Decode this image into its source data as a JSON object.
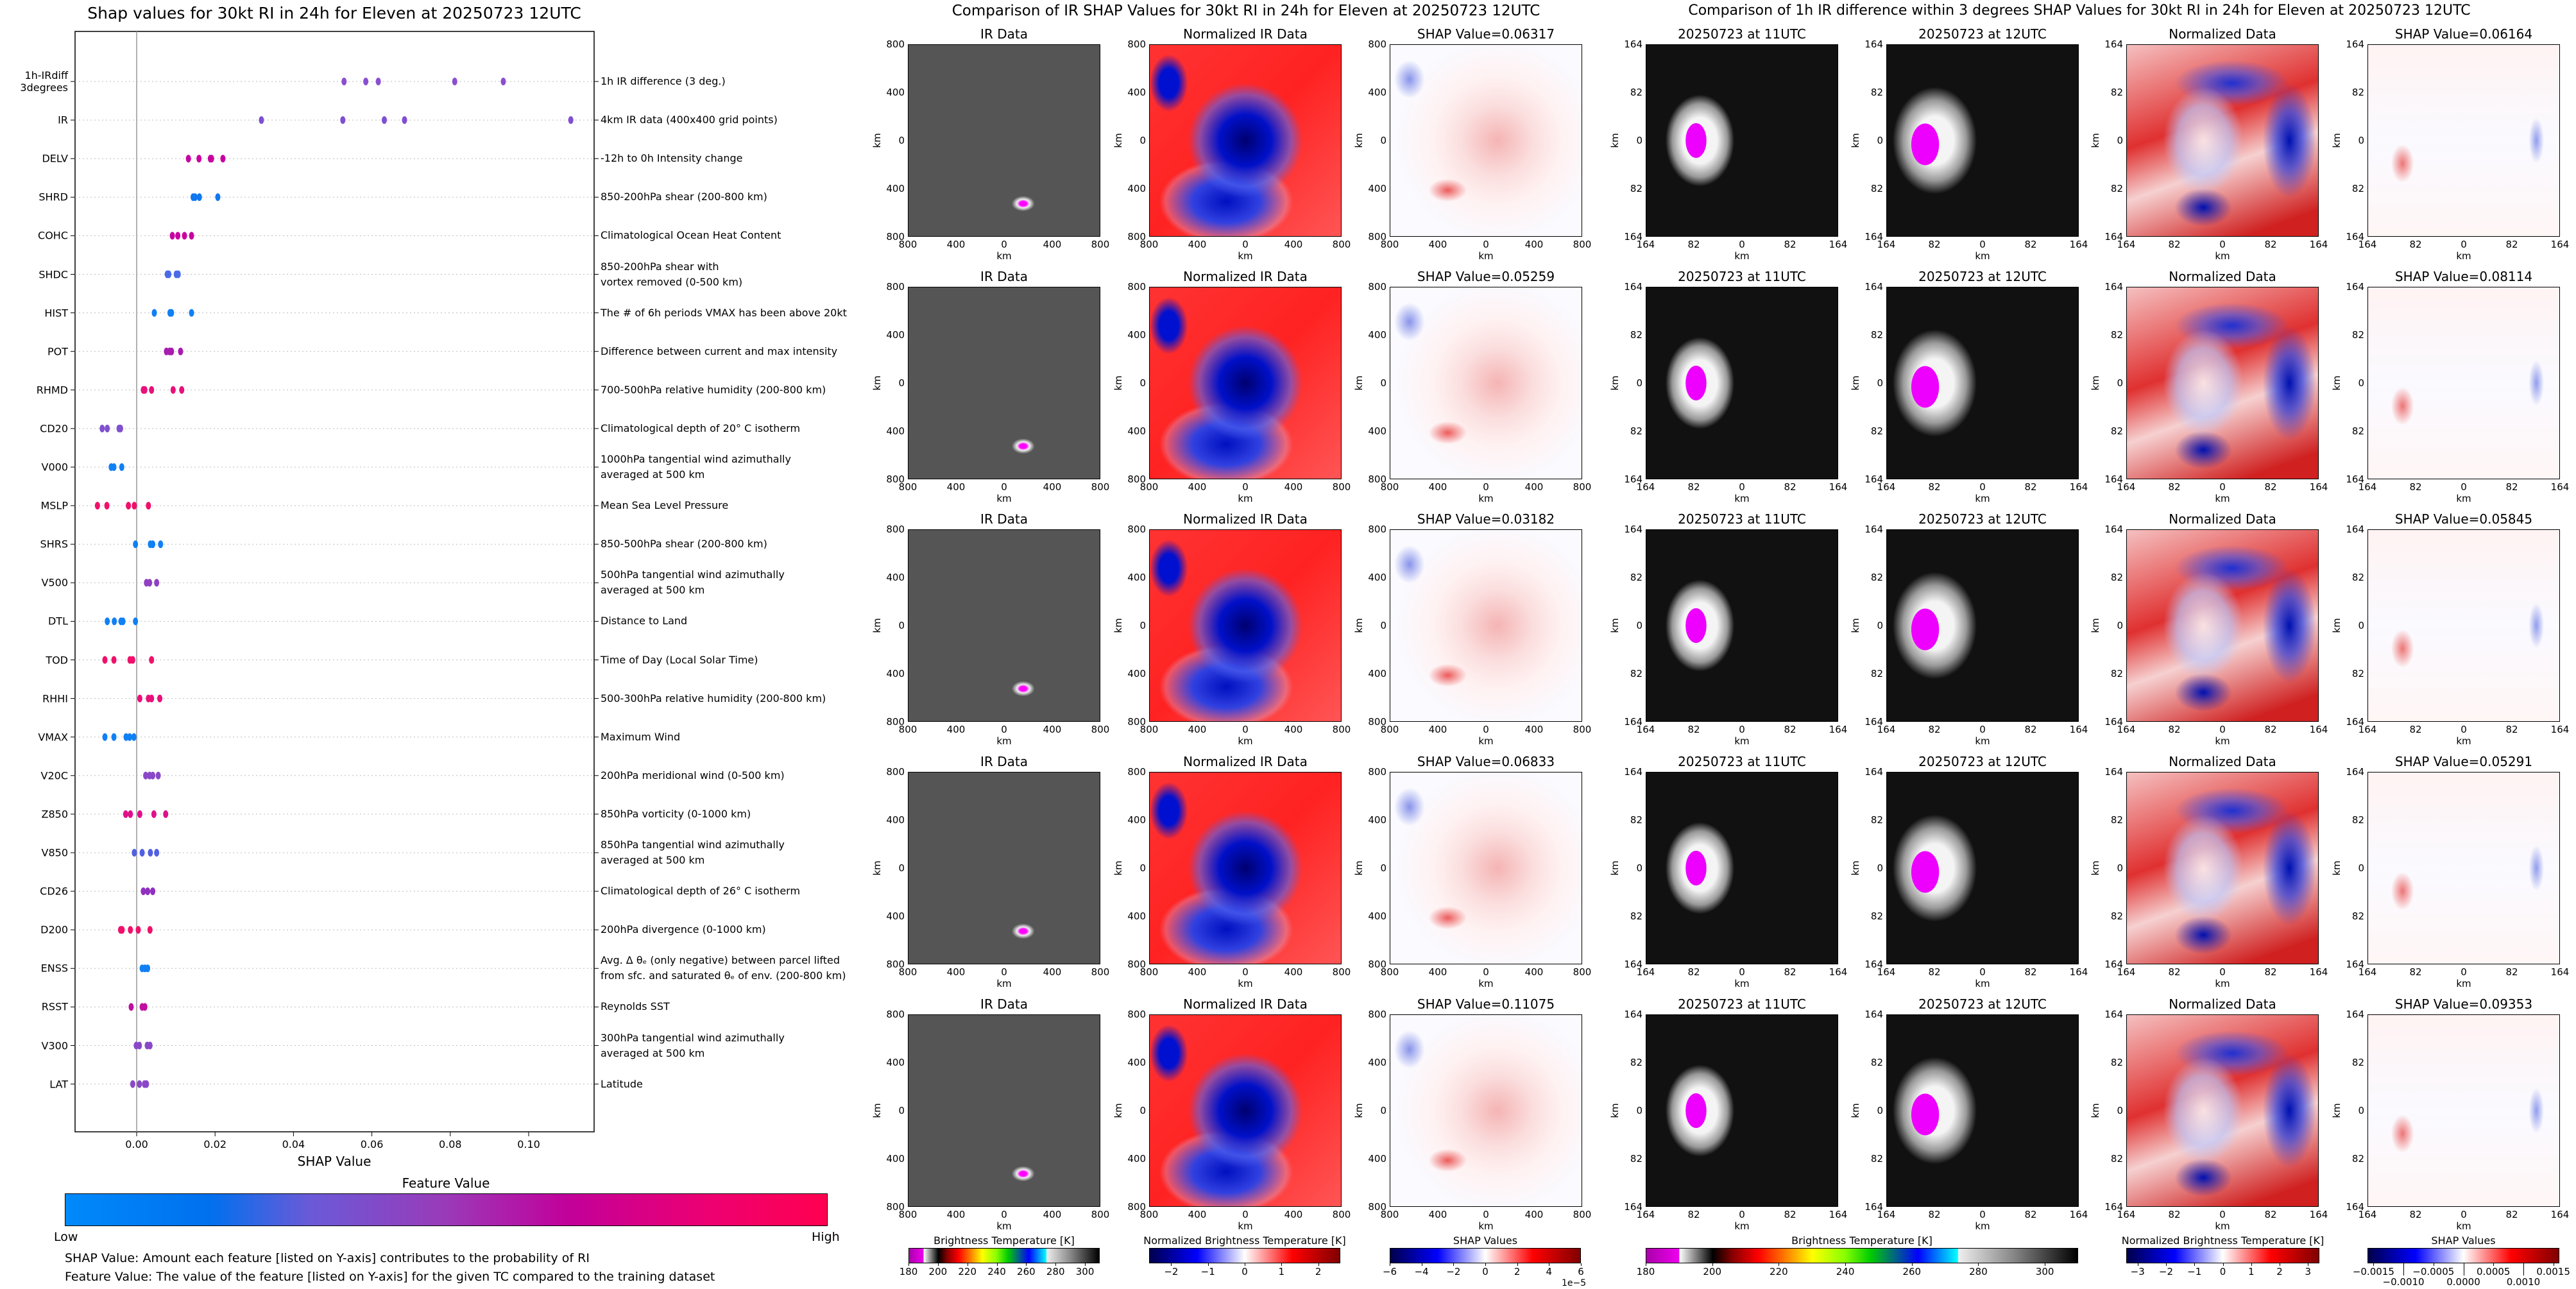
{
  "shap_summary": {
    "title": "Shap values for 30kt RI in 24h for Eleven at 20250723 12UTC",
    "colorbar_title": "Feature Value",
    "colorbar_low": "Low",
    "colorbar_high": "High",
    "note_shap": "SHAP Value: Amount each feature [listed on Y-axis] contributes to the probability of RI",
    "note_feature": "Feature Value: The value of the feature [listed on Y-axis] for the given TC compared to the training dataset",
    "colors": {
      "low": "#008afb",
      "mid": "#9a3ab8",
      "high": "#ff0050"
    }
  },
  "chart_data": {
    "type": "scatter",
    "title": "Shap values for 30kt RI in 24h for Eleven at 20250723 12UTC",
    "xlabel": "SHAP Value",
    "ylabel": "",
    "xlim": [
      -0.0157,
      0.1167
    ],
    "xticks": [
      "0.00",
      "0.02",
      "0.04",
      "0.06",
      "0.08",
      "0.10"
    ],
    "xtick_values": [
      0,
      0.02,
      0.04,
      0.06,
      0.08,
      0.1
    ],
    "grid": "horizontal dotted",
    "features": [
      {
        "code": "1h-IRdiff\n3degrees",
        "desc": "1h IR difference (3 deg.)",
        "color": "#8a4fd0",
        "values": [
          0.05291,
          0.05845,
          0.06164,
          0.08114,
          0.09353
        ]
      },
      {
        "code": "IR",
        "desc": "4km IR data (400x400 grid points)",
        "color": "#7e4fd2",
        "values": [
          0.03182,
          0.05259,
          0.06317,
          0.06833,
          0.11075
        ]
      },
      {
        "code": "DELV",
        "desc": "-12h to 0h Intensity change",
        "color": "#c800a0",
        "values": [
          0.0132,
          0.0159,
          0.0188,
          0.0191,
          0.022
        ]
      },
      {
        "code": "SHRD",
        "desc": "850-200hPa shear (200-800 km)",
        "color": "#1078f0",
        "values": [
          0.0144,
          0.0149,
          0.016,
          0.0207
        ]
      },
      {
        "code": "COHC",
        "desc": "Climatological Ocean Heat Content",
        "color": "#c800a0",
        "values": [
          0.0091,
          0.0105,
          0.0122,
          0.014
        ]
      },
      {
        "code": "SHDC",
        "desc": "850-200hPa shear with\nvortex removed (0-500 km)",
        "color": "#4a6ae8",
        "values": [
          0.0078,
          0.0082,
          0.0101,
          0.0106
        ]
      },
      {
        "code": "HIST",
        "desc": "The # of 6h periods VMAX has been above 20kt",
        "color": "#1080f4",
        "values": [
          0.0045,
          0.0085,
          0.0089,
          0.014
        ]
      },
      {
        "code": "POT",
        "desc": "Difference between current and max intensity",
        "color": "#a81cb0",
        "values": [
          0.0076,
          0.0084,
          0.0089,
          0.0112
        ]
      },
      {
        "code": "RHMD",
        "desc": "700-500hPa relative humidity (200-800 km)",
        "color": "#e8107a",
        "values": [
          0.0017,
          0.0021,
          0.0038,
          0.0093,
          0.0115
        ]
      },
      {
        "code": "CD20",
        "desc": "Climatological depth of 20° C isotherm",
        "color": "#8050d0",
        "values": [
          -0.0088,
          -0.0075,
          -0.0045,
          -0.0041
        ]
      },
      {
        "code": "V000",
        "desc": "1000hPa tangential wind azimuthally\naveraged at 500 km",
        "color": "#1080f4",
        "values": [
          -0.0065,
          -0.0058,
          -0.0038
        ]
      },
      {
        "code": "MSLP",
        "desc": "Mean Sea Level Pressure",
        "color": "#f0106a",
        "values": [
          -0.01,
          -0.0076,
          -0.0021,
          -0.0006,
          0.003
        ]
      },
      {
        "code": "SHRS",
        "desc": "850-500hPa shear (200-800 km)",
        "color": "#1080f4",
        "values": [
          -0.0003,
          0.0035,
          0.0041,
          0.0061
        ]
      },
      {
        "code": "V500",
        "desc": "500hPa tangential wind azimuthally\naveraged at 500 km",
        "color": "#9040c0",
        "values": [
          0.0025,
          0.0033,
          0.0051
        ]
      },
      {
        "code": "DTL",
        "desc": "Distance to Land",
        "color": "#1080f4",
        "values": [
          -0.0075,
          -0.0057,
          -0.004,
          -0.0035,
          -0.0003
        ]
      },
      {
        "code": "TOD",
        "desc": "Time of Day (Local Solar Time)",
        "color": "#f0106a",
        "values": [
          -0.0081,
          -0.0058,
          -0.0017,
          -0.001,
          0.0038
        ]
      },
      {
        "code": "RHHI",
        "desc": "500-300hPa relative humidity (200-800 km)",
        "color": "#e8107a",
        "values": [
          0.0008,
          0.003,
          0.0038,
          0.0059
        ]
      },
      {
        "code": "VMAX",
        "desc": "Maximum Wind",
        "color": "#1080f4",
        "values": [
          -0.0081,
          -0.0058,
          -0.0027,
          -0.0018,
          -0.0007
        ]
      },
      {
        "code": "V20C",
        "desc": "200hPa meridional wind (0-500 km)",
        "color": "#8a48c8",
        "values": [
          0.0023,
          0.0033,
          0.0041,
          0.0055
        ]
      },
      {
        "code": "Z850",
        "desc": "850hPa vorticity (0-1000 km)",
        "color": "#e0108a",
        "values": [
          -0.0028,
          -0.0016,
          0.0008,
          0.0044,
          0.0074
        ]
      },
      {
        "code": "V850",
        "desc": "850hPa tangential wind azimuthally\naveraged at 500 km",
        "color": "#5060e0",
        "values": [
          -0.0006,
          0.0014,
          0.0035,
          0.0051
        ]
      },
      {
        "code": "CD26",
        "desc": "Climatological depth of 26° C isotherm",
        "color": "#9030c0",
        "values": [
          0.0017,
          0.0028,
          0.0041
        ]
      },
      {
        "code": "D200",
        "desc": "200hPa divergence (0-1000 km)",
        "color": "#f0106a",
        "values": [
          -0.0041,
          -0.0037,
          -0.0016,
          0.0004,
          0.0034
        ]
      },
      {
        "code": "ENSS",
        "desc": "Avg. Δ θₑ (only negative) between parcel lifted\nfrom sfc. and saturated θₑ of env. (200-800 km)",
        "color": "#1080f4",
        "values": [
          0.0014,
          0.0021,
          0.0028
        ]
      },
      {
        "code": "RSST",
        "desc": "Reynolds SST",
        "color": "#c010a0",
        "values": [
          -0.0014,
          0.0014,
          0.0021
        ]
      },
      {
        "code": "V300",
        "desc": "300hPa tangential wind azimuthally\naveraged at 500 km",
        "color": "#8a48c8",
        "values": [
          -0.0001,
          0.0007,
          0.0027,
          0.0034
        ]
      },
      {
        "code": "LAT",
        "desc": "Latitude",
        "color": "#8a48c8",
        "values": [
          -0.001,
          0.0007,
          0.002,
          0.0025
        ]
      }
    ]
  },
  "ir_comparison": {
    "title": "Comparison of IR SHAP Values for 30kt RI in 24h for Eleven at 20250723 12UTC",
    "panel_titles": [
      "IR Data",
      "Normalized IR Data"
    ],
    "shap_prefix": "SHAP Value=",
    "shap_values": [
      "0.06317",
      "0.05259",
      "0.03182",
      "0.06833",
      "0.11075"
    ],
    "ticks": [
      "800",
      "400",
      "0",
      "400",
      "800"
    ],
    "axis_label": "km",
    "colorbars": [
      {
        "title": "Brightness Temperature [K]",
        "ticks": [
          "180",
          "200",
          "220",
          "240",
          "260",
          "280",
          "300"
        ],
        "range": [
          180,
          310
        ],
        "tick_values": [
          180,
          200,
          220,
          240,
          260,
          280,
          300
        ]
      },
      {
        "title": "Normalized Brightness Temperature [K]",
        "ticks": [
          "−2",
          "−1",
          "0",
          "1",
          "2"
        ],
        "range": [
          -2.6,
          2.6
        ],
        "tick_values": [
          -2,
          -1,
          0,
          1,
          2
        ]
      },
      {
        "title": "SHAP Values",
        "ticks": [
          "−6",
          "−4",
          "−2",
          "0",
          "2",
          "4",
          "6"
        ],
        "range": [
          -6,
          6
        ],
        "tick_values": [
          -6,
          -4,
          -2,
          0,
          2,
          4,
          6
        ],
        "offset": "1e−5"
      }
    ]
  },
  "irdiff_comparison": {
    "title": "Comparison of 1h IR difference within 3 degrees SHAP Values for 30kt RI in 24h for Eleven at 20250723 12UTC",
    "panel_titles": [
      "20250723 at 11UTC",
      "20250723 at 12UTC",
      "Normalized Data"
    ],
    "shap_prefix": "SHAP Value=",
    "shap_values": [
      "0.06164",
      "0.08114",
      "0.05845",
      "0.05291",
      "0.09353"
    ],
    "ticks": [
      "164",
      "82",
      "0",
      "82",
      "164"
    ],
    "axis_label": "km",
    "colorbars": [
      {
        "title": "Brightness Temperature [K]",
        "ticks": [
          "180",
          "200",
          "220",
          "240",
          "260",
          "280",
          "300"
        ],
        "range": [
          180,
          310
        ],
        "tick_values": [
          180,
          200,
          220,
          240,
          260,
          280,
          300
        ]
      },
      {
        "title": "Normalized Brightness Temperature [K]",
        "ticks": [
          "−3",
          "−2",
          "−1",
          "0",
          "1",
          "2",
          "3"
        ],
        "range": [
          -3.4,
          3.4
        ],
        "tick_values": [
          -3,
          -2,
          -1,
          0,
          1,
          2,
          3
        ]
      },
      {
        "title": "SHAP Values",
        "ticks": [
          "−0.0015",
          "−0.0010",
          "−0.0005",
          "0.0000",
          "0.0005",
          "0.0010",
          "0.0015"
        ],
        "range": [
          -0.0016,
          0.0016
        ],
        "tick_values": [
          -0.0015,
          -0.001,
          -0.0005,
          0,
          0.0005,
          0.001,
          0.0015
        ]
      }
    ]
  }
}
